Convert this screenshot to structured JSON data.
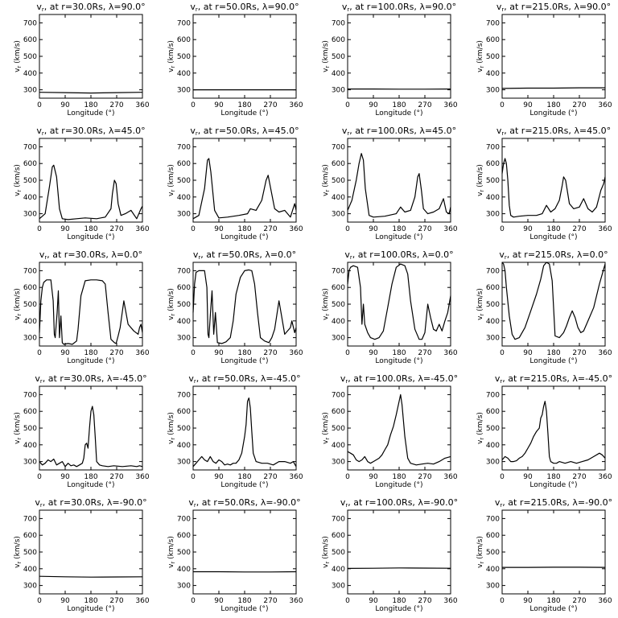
{
  "figure": {
    "xlabel": "Longitude (°)",
    "ylabel": "v",
    "ylabel_sub": "r",
    "ylabel_unit": " (km/s)",
    "xlim": [
      0,
      360
    ],
    "ylim": [
      250,
      750
    ],
    "xticks": [
      0,
      90,
      180,
      270,
      360
    ],
    "yticks": [
      300,
      400,
      500,
      600,
      700
    ],
    "title_prefix": "v",
    "title_sub": "r"
  },
  "chart_data": [
    {
      "type": "line",
      "title": "v, at r=30.0Rs, λ=90.0°",
      "r": "30.0",
      "lat": "90.0",
      "x": [
        0,
        90,
        180,
        270,
        360
      ],
      "y": [
        285,
        283,
        281,
        283,
        285
      ]
    },
    {
      "type": "line",
      "title": "v, at r=50.0Rs, λ=90.0°",
      "r": "50.0",
      "lat": "90.0",
      "x": [
        0,
        90,
        180,
        270,
        360
      ],
      "y": [
        300,
        300,
        300,
        300,
        300
      ]
    },
    {
      "type": "line",
      "title": "v, at r=100.0Rs, λ=90.0°",
      "r": "100.0",
      "lat": "90.0",
      "x": [
        0,
        90,
        180,
        270,
        360
      ],
      "y": [
        305,
        305,
        304,
        304,
        305
      ]
    },
    {
      "type": "line",
      "title": "v, at r=215.0Rs, λ=90.0°",
      "r": "215.0",
      "lat": "90.0",
      "x": [
        0,
        90,
        180,
        270,
        360
      ],
      "y": [
        308,
        310,
        310,
        312,
        312
      ]
    },
    {
      "type": "line",
      "title": "v, at r=30.0Rs, λ=45.0°",
      "r": "30.0",
      "lat": "45.0",
      "x": [
        0,
        20,
        35,
        45,
        50,
        60,
        70,
        80,
        100,
        130,
        160,
        200,
        230,
        250,
        255,
        262,
        268,
        275,
        285,
        300,
        320,
        340,
        355,
        360
      ],
      "y": [
        270,
        300,
        460,
        580,
        590,
        520,
        330,
        270,
        265,
        270,
        275,
        270,
        280,
        330,
        420,
        500,
        480,
        360,
        290,
        300,
        320,
        270,
        330,
        345
      ]
    },
    {
      "type": "line",
      "title": "v, at r=50.0Rs, λ=45.0°",
      "r": "50.0",
      "lat": "45.0",
      "x": [
        0,
        20,
        40,
        50,
        55,
        62,
        75,
        90,
        120,
        160,
        190,
        200,
        220,
        240,
        255,
        262,
        270,
        285,
        300,
        320,
        340,
        355,
        360
      ],
      "y": [
        270,
        290,
        450,
        620,
        630,
        550,
        320,
        275,
        280,
        290,
        300,
        330,
        320,
        380,
        500,
        530,
        460,
        330,
        310,
        320,
        280,
        360,
        320
      ]
    },
    {
      "type": "line",
      "title": "v, at r=100.0Rs, λ=45.0°",
      "r": "100.0",
      "lat": "45.0",
      "x": [
        0,
        15,
        30,
        40,
        48,
        55,
        62,
        75,
        90,
        130,
        170,
        185,
        200,
        220,
        235,
        245,
        250,
        258,
        265,
        280,
        300,
        320,
        335,
        345,
        355,
        360
      ],
      "y": [
        320,
        380,
        500,
        600,
        660,
        620,
        450,
        290,
        280,
        285,
        300,
        340,
        310,
        320,
        400,
        520,
        540,
        440,
        330,
        300,
        310,
        330,
        390,
        310,
        300,
        340
      ]
    },
    {
      "type": "line",
      "title": "v, at r=215.0Rs, λ=45.0°",
      "r": "215.0",
      "lat": "45.0",
      "x": [
        0,
        5,
        10,
        15,
        20,
        25,
        30,
        40,
        60,
        90,
        120,
        140,
        155,
        170,
        185,
        200,
        210,
        215,
        222,
        235,
        250,
        270,
        285,
        300,
        315,
        330,
        345,
        355,
        360
      ],
      "y": [
        540,
        600,
        630,
        600,
        500,
        350,
        290,
        280,
        285,
        290,
        290,
        300,
        350,
        310,
        330,
        380,
        470,
        520,
        500,
        360,
        330,
        340,
        390,
        330,
        310,
        340,
        440,
        480,
        520
      ]
    },
    {
      "type": "line",
      "title": "v, at r=30.0Rs, λ=0.0°",
      "r": "30.0",
      "lat": "0.0",
      "x": [
        0,
        5,
        10,
        15,
        25,
        40,
        48,
        52,
        55,
        62,
        66,
        70,
        75,
        80,
        85,
        100,
        115,
        130,
        135,
        145,
        160,
        180,
        200,
        220,
        230,
        240,
        250,
        262,
        268,
        275,
        282,
        295,
        310,
        330,
        345,
        350,
        355,
        360
      ],
      "y": [
        330,
        520,
        600,
        630,
        645,
        645,
        520,
        320,
        300,
        450,
        580,
        300,
        430,
        270,
        260,
        265,
        260,
        280,
        350,
        550,
        640,
        645,
        645,
        640,
        620,
        450,
        290,
        270,
        265,
        310,
        360,
        520,
        380,
        340,
        320,
        360,
        380,
        330
      ]
    },
    {
      "type": "line",
      "title": "v, at r=50.0Rs, λ=0.0°",
      "r": "50.0",
      "lat": "0.0",
      "x": [
        0,
        5,
        10,
        20,
        40,
        48,
        52,
        55,
        62,
        66,
        72,
        78,
        85,
        100,
        115,
        130,
        140,
        150,
        165,
        180,
        195,
        205,
        215,
        225,
        235,
        250,
        265,
        275,
        285,
        300,
        320,
        340,
        345,
        355,
        360
      ],
      "y": [
        450,
        620,
        690,
        700,
        700,
        600,
        320,
        300,
        480,
        580,
        320,
        450,
        270,
        265,
        275,
        300,
        400,
        560,
        660,
        700,
        705,
        700,
        620,
        450,
        300,
        280,
        270,
        300,
        350,
        520,
        320,
        360,
        400,
        330,
        360
      ]
    },
    {
      "type": "line",
      "title": "v, at r=100.0Rs, λ=0.0°",
      "r": "100.0",
      "lat": "0.0",
      "x": [
        0,
        5,
        10,
        20,
        35,
        45,
        50,
        55,
        60,
        70,
        80,
        95,
        110,
        125,
        140,
        155,
        170,
        185,
        200,
        210,
        220,
        235,
        250,
        260,
        270,
        280,
        290,
        300,
        310,
        320,
        330,
        340,
        350,
        360
      ],
      "y": [
        620,
        700,
        720,
        730,
        720,
        600,
        380,
        500,
        380,
        330,
        300,
        290,
        300,
        340,
        480,
        620,
        720,
        740,
        730,
        680,
        520,
        350,
        290,
        290,
        330,
        500,
        420,
        350,
        340,
        380,
        340,
        400,
        450,
        550
      ]
    },
    {
      "type": "line",
      "title": "v, at r=215.0Rs, λ=0.0°",
      "r": "215.0",
      "lat": "0.0",
      "x": [
        0,
        5,
        10,
        15,
        25,
        35,
        45,
        60,
        80,
        100,
        120,
        135,
        145,
        155,
        165,
        175,
        185,
        200,
        215,
        225,
        235,
        245,
        255,
        265,
        275,
        285,
        300,
        320,
        340,
        360
      ],
      "y": [
        750,
        740,
        700,
        600,
        430,
        320,
        290,
        300,
        360,
        460,
        560,
        650,
        730,
        750,
        740,
        640,
        310,
        300,
        330,
        370,
        420,
        460,
        420,
        360,
        330,
        340,
        400,
        480,
        620,
        740
      ]
    },
    {
      "type": "line",
      "title": "v, at r=30.0Rs, λ=-45.0°",
      "r": "30.0",
      "lat": "-45.0",
      "x": [
        0,
        10,
        20,
        30,
        40,
        50,
        60,
        70,
        80,
        90,
        100,
        110,
        120,
        130,
        140,
        150,
        155,
        160,
        165,
        170,
        175,
        180,
        185,
        190,
        195,
        200,
        210,
        220,
        240,
        260,
        290,
        320,
        340,
        350,
        360
      ],
      "y": [
        300,
        280,
        290,
        310,
        300,
        315,
        280,
        290,
        300,
        270,
        290,
        275,
        280,
        270,
        280,
        290,
        320,
        400,
        410,
        380,
        500,
        600,
        630,
        580,
        450,
        300,
        280,
        275,
        270,
        275,
        270,
        275,
        270,
        275,
        270
      ]
    },
    {
      "type": "line",
      "title": "v, at r=50.0Rs, λ=-45.0°",
      "r": "50.0",
      "lat": "-45.0",
      "x": [
        0,
        10,
        20,
        30,
        40,
        50,
        60,
        70,
        80,
        90,
        100,
        110,
        120,
        130,
        140,
        150,
        160,
        170,
        180,
        185,
        190,
        195,
        200,
        205,
        210,
        220,
        240,
        260,
        280,
        300,
        320,
        340,
        350,
        360
      ],
      "y": [
        270,
        290,
        310,
        330,
        310,
        300,
        330,
        300,
        290,
        310,
        300,
        280,
        285,
        280,
        290,
        290,
        310,
        350,
        450,
        520,
        660,
        680,
        620,
        480,
        350,
        300,
        290,
        290,
        280,
        300,
        300,
        290,
        300,
        270
      ]
    },
    {
      "type": "line",
      "title": "v, at r=100.0Rs, λ=-45.0°",
      "r": "100.0",
      "lat": "-45.0",
      "x": [
        0,
        10,
        20,
        30,
        40,
        50,
        60,
        70,
        80,
        90,
        100,
        110,
        120,
        130,
        140,
        150,
        160,
        170,
        180,
        185,
        190,
        200,
        210,
        220,
        240,
        260,
        280,
        300,
        320,
        340,
        360
      ],
      "y": [
        360,
        350,
        340,
        310,
        300,
        310,
        330,
        300,
        290,
        300,
        310,
        320,
        340,
        370,
        400,
        460,
        510,
        580,
        660,
        700,
        640,
        450,
        320,
        290,
        280,
        285,
        290,
        285,
        300,
        320,
        330
      ]
    },
    {
      "type": "line",
      "title": "v, at r=215.0Rs, λ=-45.0°",
      "r": "215.0",
      "lat": "-45.0",
      "x": [
        0,
        10,
        20,
        30,
        40,
        50,
        60,
        70,
        80,
        90,
        100,
        110,
        120,
        130,
        135,
        140,
        145,
        150,
        155,
        160,
        165,
        170,
        180,
        190,
        200,
        220,
        240,
        260,
        280,
        300,
        320,
        340,
        350,
        360
      ],
      "y": [
        310,
        330,
        320,
        300,
        300,
        305,
        320,
        330,
        350,
        380,
        410,
        450,
        480,
        500,
        560,
        580,
        630,
        660,
        600,
        470,
        330,
        300,
        290,
        290,
        300,
        290,
        300,
        290,
        300,
        310,
        330,
        350,
        340,
        320
      ]
    },
    {
      "type": "line",
      "title": "v, at r=30.0Rs, λ=-90.0°",
      "r": "30.0",
      "lat": "-90.0",
      "x": [
        0,
        90,
        180,
        270,
        360
      ],
      "y": [
        355,
        352,
        350,
        351,
        352
      ]
    },
    {
      "type": "line",
      "title": "v, at r=50.0Rs, λ=-90.0°",
      "r": "50.0",
      "lat": "-90.0",
      "x": [
        0,
        90,
        180,
        270,
        360
      ],
      "y": [
        382,
        382,
        381,
        381,
        382
      ]
    },
    {
      "type": "line",
      "title": "v, at r=100.0Rs, λ=-90.0°",
      "r": "100.0",
      "lat": "-90.0",
      "x": [
        0,
        90,
        180,
        270,
        360
      ],
      "y": [
        402,
        403,
        405,
        404,
        403
      ]
    },
    {
      "type": "line",
      "title": "v, at r=215.0Rs, λ=-90.0°",
      "r": "215.0",
      "lat": "-90.0",
      "x": [
        0,
        90,
        180,
        270,
        360
      ],
      "y": [
        408,
        408,
        409,
        409,
        408
      ]
    }
  ]
}
